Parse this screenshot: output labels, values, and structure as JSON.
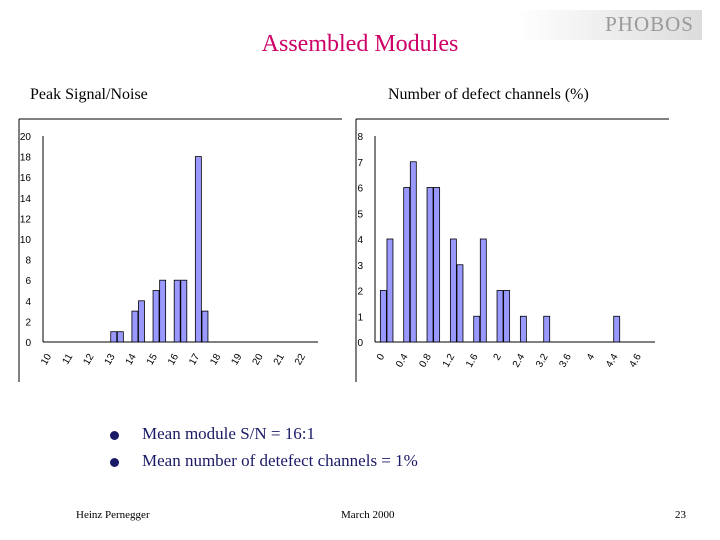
{
  "header": {
    "title": "Assembled Modules",
    "logo": "PHOBOS"
  },
  "labels": {
    "left": "Peak Signal/Noise",
    "right": "Number of defect channels (%)"
  },
  "bullets": [
    "Mean module S/N = 16:1",
    "Mean number of detefect channels = 1%"
  ],
  "footer": {
    "author": "Heinz Pernegger",
    "date": "March 2000",
    "page": "23"
  },
  "colors": {
    "bar": "#9999ff",
    "bar_edge": "#000000",
    "bullet": "#1a1a66",
    "title": "#cc0066"
  },
  "chart_data": [
    {
      "type": "bar",
      "categories": [
        "10",
        "11",
        "12",
        "13",
        "14",
        "15",
        "16",
        "17",
        "18",
        "19",
        "20",
        "21",
        "22"
      ],
      "ylim": [
        0,
        20
      ],
      "yticks": [
        0,
        2,
        4,
        6,
        8,
        10,
        12,
        14,
        16,
        18,
        20
      ],
      "series": [
        {
          "values": [
            0,
            0,
            0,
            1,
            3,
            5,
            6,
            18,
            0,
            0,
            0,
            0,
            0
          ]
        },
        {
          "values": [
            0,
            0,
            0,
            1,
            4,
            6,
            6,
            3,
            0,
            0,
            0,
            0,
            0
          ]
        }
      ]
    },
    {
      "type": "bar",
      "categories": [
        "0",
        "0.4",
        "0.8",
        "1.2",
        "1.6",
        "2",
        "2.4",
        "3.2",
        "3.6",
        "4",
        "4.4",
        "4.6"
      ],
      "ylim": [
        0,
        8
      ],
      "yticks": [
        0,
        1,
        2,
        3,
        4,
        5,
        6,
        7,
        8
      ],
      "series": [
        {
          "values": [
            2,
            6,
            6,
            4,
            1,
            2,
            1,
            1,
            0,
            0,
            1,
            0
          ]
        },
        {
          "values": [
            4,
            7,
            6,
            3,
            4,
            2,
            0,
            0,
            0,
            0,
            0,
            0
          ]
        }
      ]
    }
  ]
}
